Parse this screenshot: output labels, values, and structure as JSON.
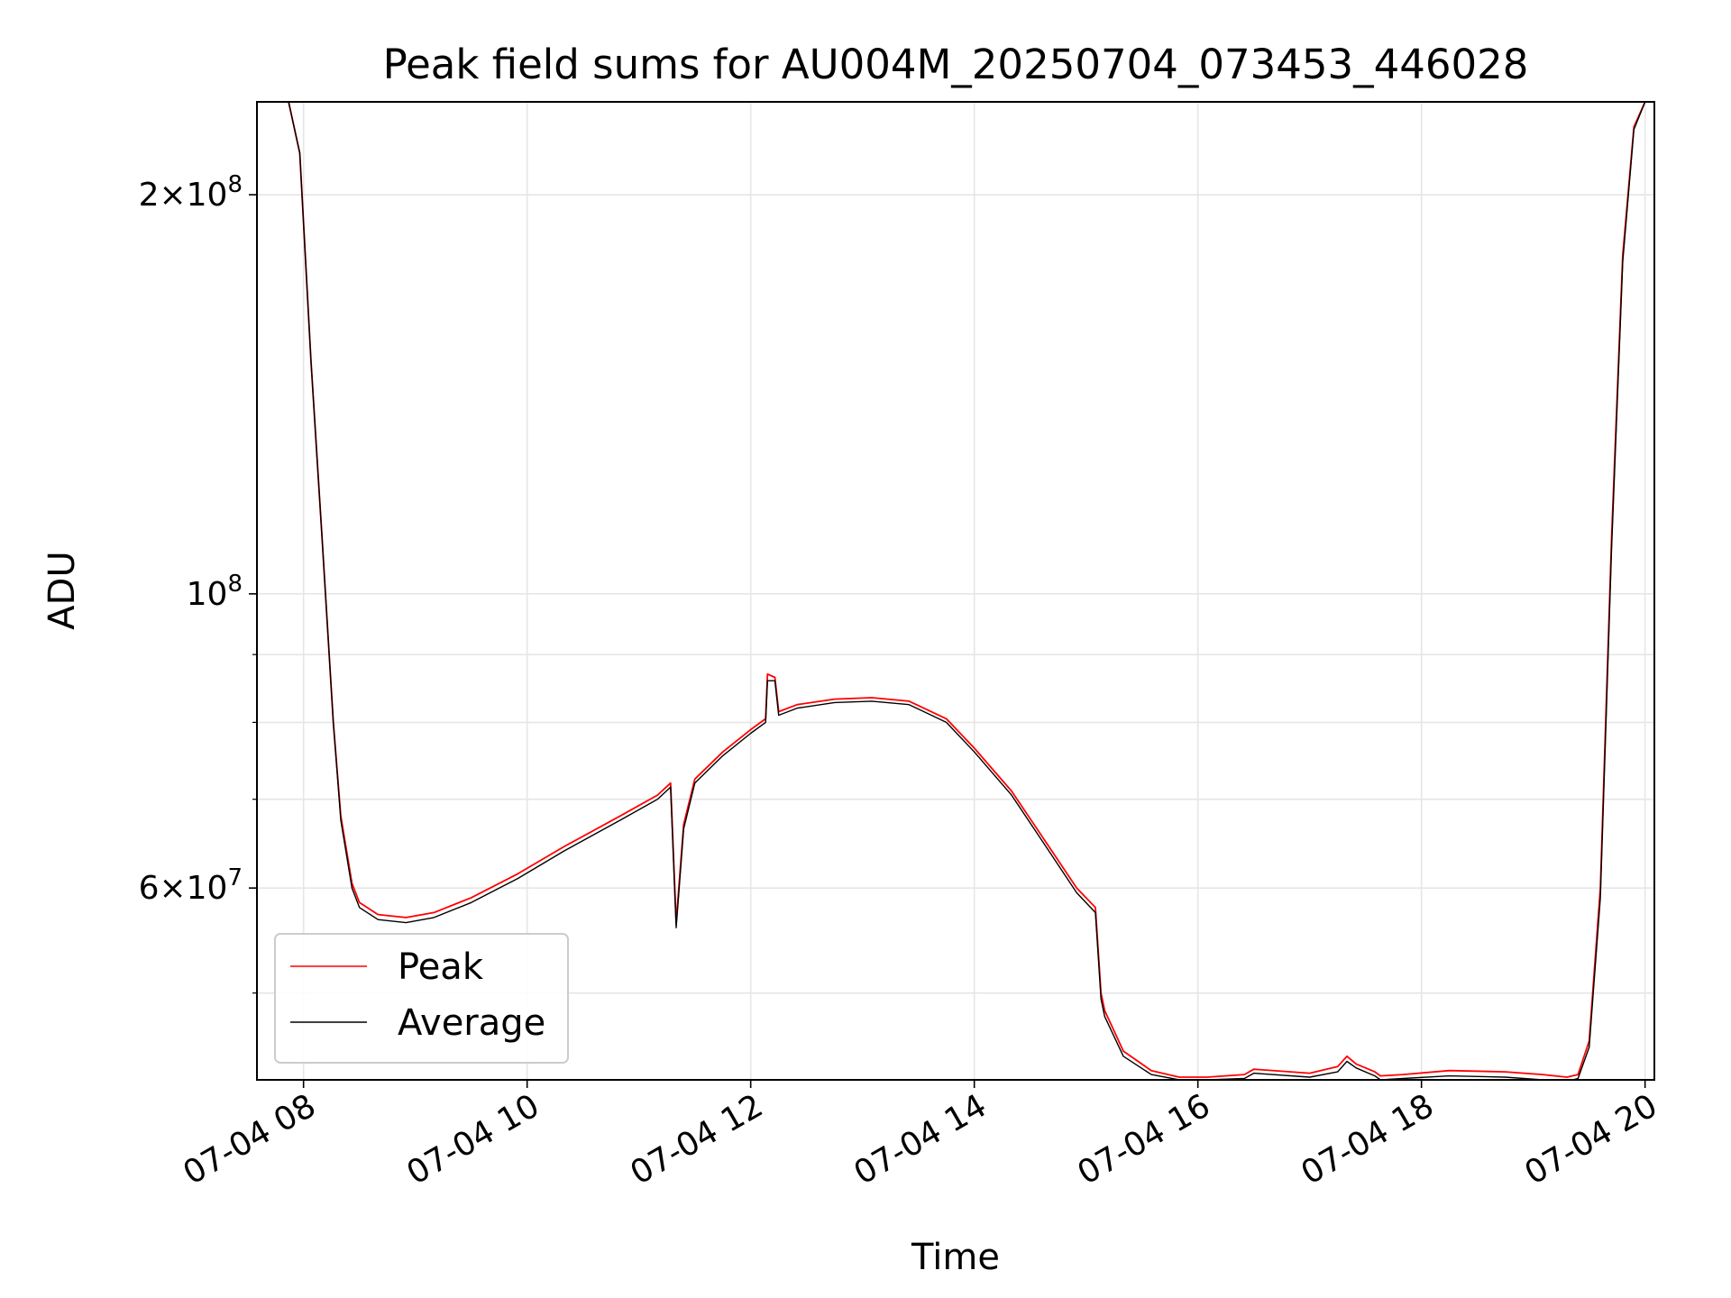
{
  "chart_data": {
    "type": "line",
    "title": "Peak field sums for AU004M_20250704_073453_446028",
    "xlabel": "Time",
    "ylabel": "ADU",
    "y_scale": "log",
    "grid": true,
    "legend_position": "lower-left",
    "xlim": [
      "2025-07-04 07:35",
      "2025-07-04 20:05"
    ],
    "ylim": [
      43000000,
      235000000
    ],
    "x_ticks": [
      {
        "label": "07-04 08",
        "value": "2025-07-04 08:00"
      },
      {
        "label": "07-04 10",
        "value": "2025-07-04 10:00"
      },
      {
        "label": "07-04 12",
        "value": "2025-07-04 12:00"
      },
      {
        "label": "07-04 14",
        "value": "2025-07-04 14:00"
      },
      {
        "label": "07-04 16",
        "value": "2025-07-04 16:00"
      },
      {
        "label": "07-04 18",
        "value": "2025-07-04 18:00"
      },
      {
        "label": "07-04 20",
        "value": "2025-07-04 20:00"
      }
    ],
    "y_ticks_major": [
      {
        "mantissa": "",
        "exponent": "8",
        "base": "10",
        "value": 100000000
      },
      {
        "mantissa": "2",
        "exponent": "8",
        "base": "10",
        "value": 200000000
      },
      {
        "mantissa": "6",
        "exponent": "7",
        "base": "10",
        "value": 60000000
      }
    ],
    "y_ticks_minor": [
      50000000,
      70000000,
      80000000,
      90000000
    ],
    "series": [
      {
        "name": "Peak",
        "color": "#ff0000",
        "x": [
          "2025-07-04 07:35",
          "2025-07-04 07:52",
          "2025-07-04 07:58",
          "2025-07-04 08:04",
          "2025-07-04 08:10",
          "2025-07-04 08:16",
          "2025-07-04 08:20",
          "2025-07-04 08:26",
          "2025-07-04 08:30",
          "2025-07-04 08:40",
          "2025-07-04 08:55",
          "2025-07-04 09:10",
          "2025-07-04 09:30",
          "2025-07-04 09:55",
          "2025-07-04 10:20",
          "2025-07-04 10:50",
          "2025-07-04 11:10",
          "2025-07-04 11:17",
          "2025-07-04 11:20",
          "2025-07-04 11:24",
          "2025-07-04 11:30",
          "2025-07-04 11:45",
          "2025-07-04 12:00",
          "2025-07-04 12:08",
          "2025-07-04 12:09",
          "2025-07-04 12:13",
          "2025-07-04 12:15",
          "2025-07-04 12:25",
          "2025-07-04 12:45",
          "2025-07-04 13:05",
          "2025-07-04 13:25",
          "2025-07-04 13:45",
          "2025-07-04 14:00",
          "2025-07-04 14:20",
          "2025-07-04 14:40",
          "2025-07-04 14:55",
          "2025-07-04 15:05",
          "2025-07-04 15:08",
          "2025-07-04 15:10",
          "2025-07-04 15:20",
          "2025-07-04 15:35",
          "2025-07-04 15:50",
          "2025-07-04 16:05",
          "2025-07-04 16:25",
          "2025-07-04 16:30",
          "2025-07-04 17:00",
          "2025-07-04 17:15",
          "2025-07-04 17:20",
          "2025-07-04 17:25",
          "2025-07-04 17:35",
          "2025-07-04 17:38",
          "2025-07-04 17:50",
          "2025-07-04 18:15",
          "2025-07-04 18:45",
          "2025-07-04 19:05",
          "2025-07-04 19:18",
          "2025-07-04 19:24",
          "2025-07-04 19:30",
          "2025-07-04 19:36",
          "2025-07-04 19:42",
          "2025-07-04 19:48",
          "2025-07-04 19:54",
          "2025-07-04 20:00",
          "2025-07-04 20:05"
        ],
        "values": [
          235000000,
          235000000,
          215000000,
          150000000,
          110000000,
          80000000,
          68000000,
          60500000,
          58500000,
          57300000,
          57000000,
          57500000,
          59000000,
          61500000,
          64500000,
          68000000,
          70500000,
          72000000,
          56500000,
          67000000,
          72500000,
          76000000,
          79000000,
          80500000,
          87000000,
          86500000,
          81500000,
          82500000,
          83300000,
          83500000,
          83000000,
          80500000,
          76500000,
          71000000,
          64500000,
          60000000,
          58000000,
          50000000,
          48500000,
          45200000,
          43700000,
          43200000,
          43200000,
          43400000,
          43800000,
          43500000,
          44000000,
          44800000,
          44200000,
          43600000,
          43300000,
          43400000,
          43700000,
          43600000,
          43400000,
          43200000,
          43400000,
          46000000,
          60000000,
          110000000,
          180000000,
          225000000,
          235000000,
          235000000
        ]
      },
      {
        "name": "Average",
        "color": "#000000",
        "x": [
          "2025-07-04 07:35",
          "2025-07-04 07:52",
          "2025-07-04 07:58",
          "2025-07-04 08:04",
          "2025-07-04 08:10",
          "2025-07-04 08:16",
          "2025-07-04 08:20",
          "2025-07-04 08:26",
          "2025-07-04 08:30",
          "2025-07-04 08:40",
          "2025-07-04 08:55",
          "2025-07-04 09:10",
          "2025-07-04 09:30",
          "2025-07-04 09:55",
          "2025-07-04 10:20",
          "2025-07-04 10:50",
          "2025-07-04 11:10",
          "2025-07-04 11:17",
          "2025-07-04 11:20",
          "2025-07-04 11:24",
          "2025-07-04 11:30",
          "2025-07-04 11:45",
          "2025-07-04 12:00",
          "2025-07-04 12:08",
          "2025-07-04 12:09",
          "2025-07-04 12:13",
          "2025-07-04 12:15",
          "2025-07-04 12:25",
          "2025-07-04 12:45",
          "2025-07-04 13:05",
          "2025-07-04 13:25",
          "2025-07-04 13:45",
          "2025-07-04 14:00",
          "2025-07-04 14:20",
          "2025-07-04 14:40",
          "2025-07-04 14:55",
          "2025-07-04 15:05",
          "2025-07-04 15:08",
          "2025-07-04 15:10",
          "2025-07-04 15:20",
          "2025-07-04 15:35",
          "2025-07-04 15:50",
          "2025-07-04 16:05",
          "2025-07-04 16:25",
          "2025-07-04 16:30",
          "2025-07-04 17:00",
          "2025-07-04 17:15",
          "2025-07-04 17:20",
          "2025-07-04 17:25",
          "2025-07-04 17:35",
          "2025-07-04 17:38",
          "2025-07-04 17:50",
          "2025-07-04 18:15",
          "2025-07-04 18:45",
          "2025-07-04 19:05",
          "2025-07-04 19:18",
          "2025-07-04 19:24",
          "2025-07-04 19:30",
          "2025-07-04 19:36",
          "2025-07-04 19:42",
          "2025-07-04 19:48",
          "2025-07-04 19:54",
          "2025-07-04 20:00",
          "2025-07-04 20:05"
        ],
        "values": [
          235000000,
          235000000,
          215000000,
          150000000,
          110000000,
          80000000,
          67500000,
          60000000,
          58000000,
          56800000,
          56500000,
          57000000,
          58500000,
          61000000,
          64000000,
          67500000,
          70000000,
          71500000,
          56000000,
          66500000,
          72000000,
          75500000,
          78500000,
          80000000,
          86000000,
          86000000,
          81000000,
          82000000,
          82800000,
          83000000,
          82500000,
          80000000,
          76000000,
          70500000,
          64000000,
          59500000,
          57500000,
          49500000,
          48000000,
          44800000,
          43400000,
          43000000,
          43000000,
          43100000,
          43500000,
          43200000,
          43600000,
          44400000,
          43900000,
          43300000,
          43000000,
          43100000,
          43300000,
          43200000,
          43000000,
          42900000,
          43100000,
          45500000,
          59000000,
          108000000,
          178000000,
          224000000,
          235000000,
          235000000
        ]
      }
    ]
  }
}
